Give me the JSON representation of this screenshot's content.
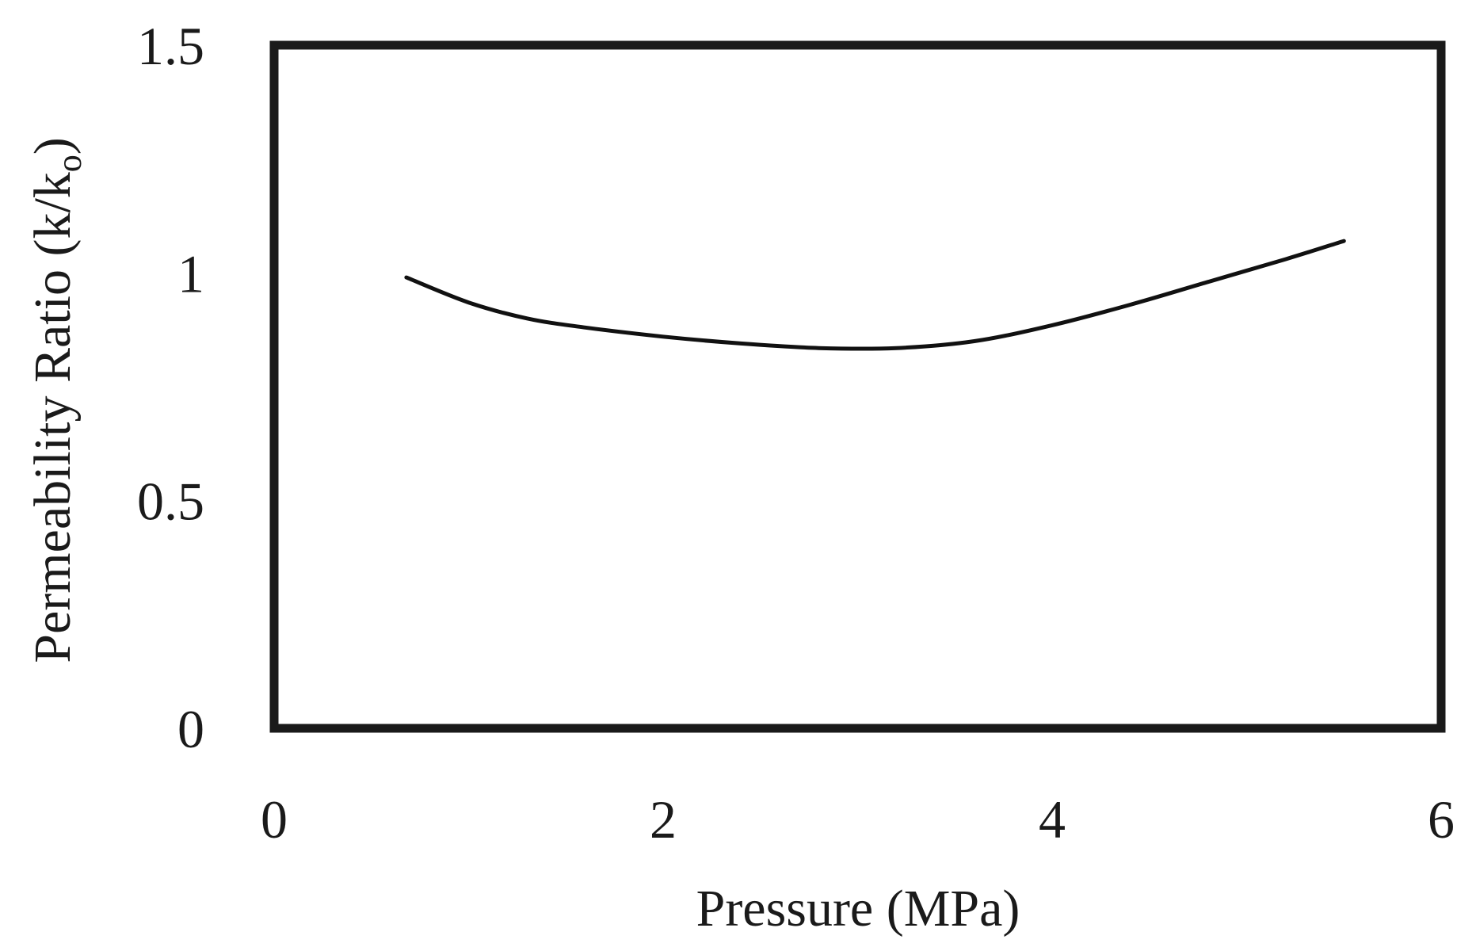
{
  "chart_data": {
    "type": "line",
    "xlabel": "Pressure (MPa)",
    "ylabel_main": "Permeability Ratio (k/k",
    "ylabel_sub": "o",
    "ylabel_close": ")",
    "xlim": [
      0,
      6
    ],
    "ylim": [
      0,
      1.5
    ],
    "x_ticks": [
      0,
      2,
      4,
      6
    ],
    "x_tick_labels": [
      "0",
      "2",
      "4",
      "6"
    ],
    "y_ticks": [
      0,
      0.5,
      1,
      1.5
    ],
    "y_tick_labels": [
      "0",
      "0.5",
      "1",
      "1.5"
    ],
    "grid": false,
    "legend": "none",
    "series": [
      {
        "color": "#111111",
        "x": [
          0.68,
          1.0,
          1.3,
          1.6,
          2.0,
          2.4,
          2.8,
          3.2,
          3.6,
          4.0,
          4.4,
          4.8,
          5.2,
          5.5
        ],
        "y": [
          0.99,
          0.935,
          0.9,
          0.88,
          0.86,
          0.845,
          0.835,
          0.835,
          0.85,
          0.885,
          0.93,
          0.98,
          1.03,
          1.07
        ]
      }
    ]
  }
}
